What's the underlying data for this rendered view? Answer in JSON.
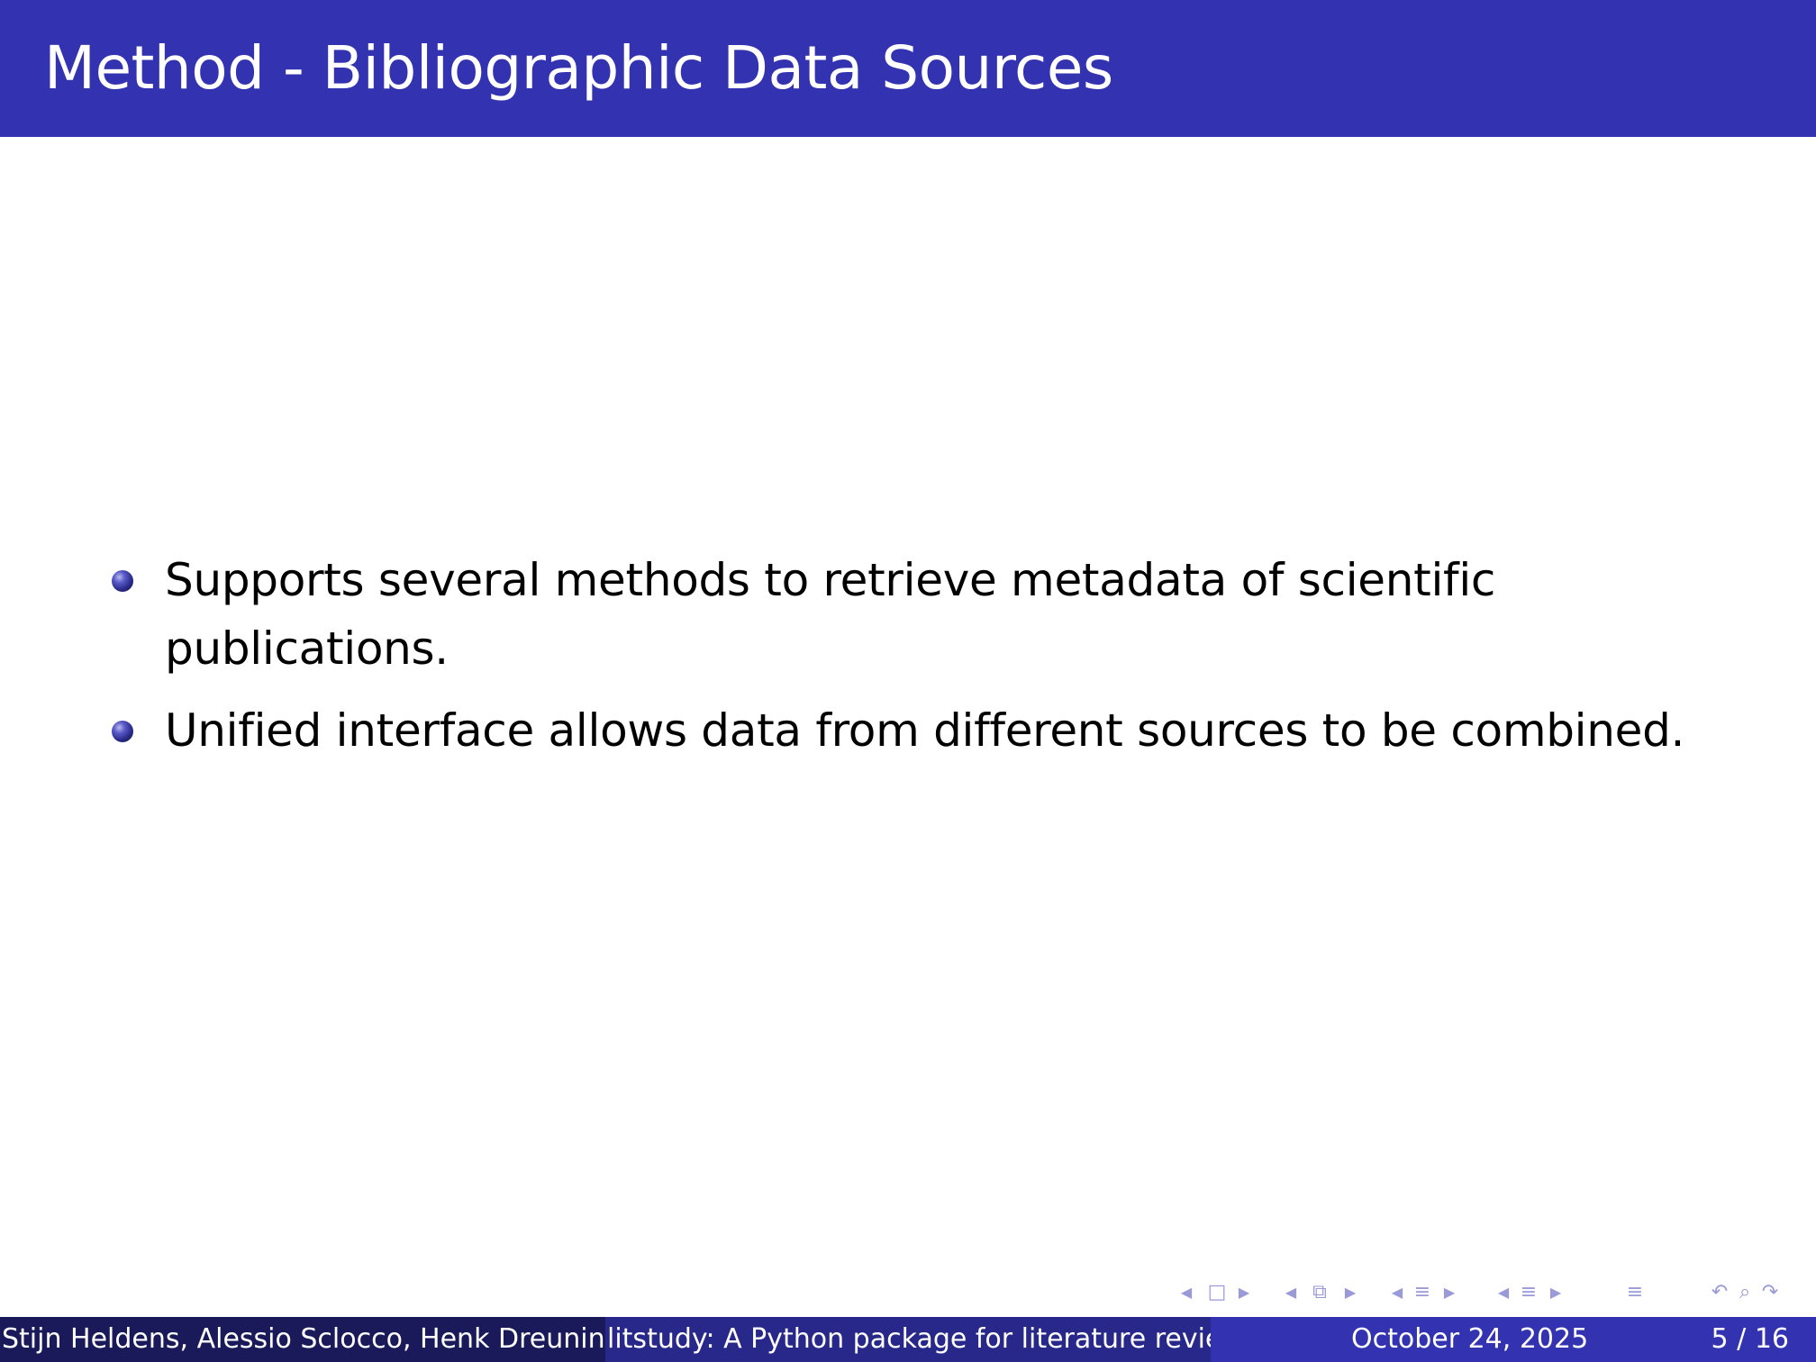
{
  "slide": {
    "title": "Method - Bibliographic Data Sources",
    "bullets": [
      "Supports several methods to retrieve metadata of scientific publications.",
      "Unified interface allows data from different sources to be combined."
    ]
  },
  "navigation": {
    "icons": [
      "nav-prev-slide-icon",
      "nav-slide-icon",
      "nav-next-slide-icon",
      "nav-prev-frame-icon",
      "nav-frame-icon",
      "nav-next-frame-icon",
      "nav-prev-subsection-icon",
      "nav-subsection-icon",
      "nav-next-subsection-icon",
      "nav-prev-section-icon",
      "nav-section-icon",
      "nav-next-section-icon",
      "nav-toc-icon",
      "nav-back-icon",
      "nav-search-icon",
      "nav-forward-icon"
    ]
  },
  "footer": {
    "authors": "Stijn Heldens, Alessio Sclocco, Henk Dreuning",
    "short_title": "litstudy: A Python package for literature reviews",
    "date": "October 24, 2025",
    "page": "5 / 16"
  },
  "colors": {
    "title_bar": "#3333b2",
    "footer_left": "#1a1a5a",
    "footer_middle": "#28288a",
    "footer_right": "#3333b2",
    "nav_icons": "#9a9ad8"
  }
}
